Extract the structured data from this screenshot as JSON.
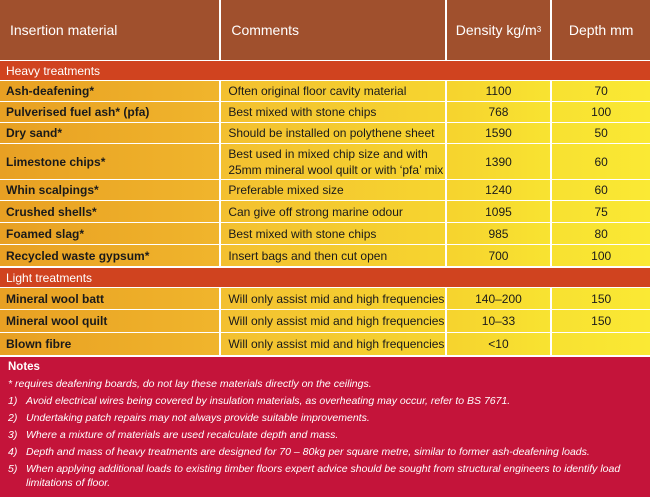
{
  "headers": {
    "material": "Insertion material",
    "comments": "Comments",
    "density": "Density kg/m",
    "density_sup": "3",
    "depth": "Depth mm"
  },
  "heavy": {
    "title": "Heavy treatments",
    "rows": [
      {
        "material": "Ash-deafening*",
        "comment": "Often original floor cavity material",
        "density": "1100",
        "depth": "70"
      },
      {
        "material": "Pulverised fuel ash* (pfa)",
        "comment": "Best mixed with stone chips",
        "density": "768",
        "depth": "100"
      },
      {
        "material": "Dry sand*",
        "comment": "Should be installed on polythene sheet",
        "density": "1590",
        "depth": "50"
      },
      {
        "material": "Limestone chips*",
        "comment": "Best used in mixed chip size and with 25mm mineral wool quilt or with ‘pfa’ mix",
        "density": "1390",
        "depth": "60"
      },
      {
        "material": "Whin scalpings*",
        "comment": "Preferable mixed size",
        "density": "1240",
        "depth": "60"
      },
      {
        "material": "Crushed shells*",
        "comment": "Can give off strong marine odour",
        "density": "1095",
        "depth": "75"
      },
      {
        "material": "Foamed slag*",
        "comment": "Best mixed with stone chips",
        "density": "985",
        "depth": "80"
      },
      {
        "material": "Recycled waste gypsum*",
        "comment": "Insert bags and then cut open",
        "density": "700",
        "depth": "100"
      }
    ]
  },
  "light": {
    "title": "Light treatments",
    "rows": [
      {
        "material": "Mineral wool batt",
        "comment": "Will only assist mid and high frequencies",
        "density": "140–200",
        "depth": "150"
      },
      {
        "material": "Mineral wool quilt",
        "comment": "Will only assist mid and high frequencies",
        "density": "10–33",
        "depth": "150"
      },
      {
        "material": "Blown fibre",
        "comment": "Will only assist mid and high frequencies",
        "density": "<10",
        "depth": ""
      }
    ]
  },
  "notes": {
    "title": "Notes",
    "star": "* requires deafening boards, do not lay these materials directly on the ceilings.",
    "items": [
      {
        "num": "1)",
        "text": "Avoid electrical wires being covered by insulation materials, as overheating may occur, refer to BS 7671."
      },
      {
        "num": "2)",
        "text": "Undertaking patch repairs may not always provide suitable improvements."
      },
      {
        "num": "3)",
        "text": "Where a mixture of materials are used recalculate depth and mass."
      },
      {
        "num": "4)",
        "text": "Depth and mass of heavy treatments are designed for 70 – 80kg per square metre, similar to former ash-deafening loads."
      },
      {
        "num": "5)",
        "text": "When applying additional loads to existing timber floors expert advice should be sought from structural engineers to identify load limitations of floor."
      }
    ]
  },
  "colors": {
    "header": "#a0502d",
    "section": "#d0431f",
    "notes": "#c4143a",
    "cell_orange": "#e8a023",
    "cell_yellow": "#f8e331"
  }
}
